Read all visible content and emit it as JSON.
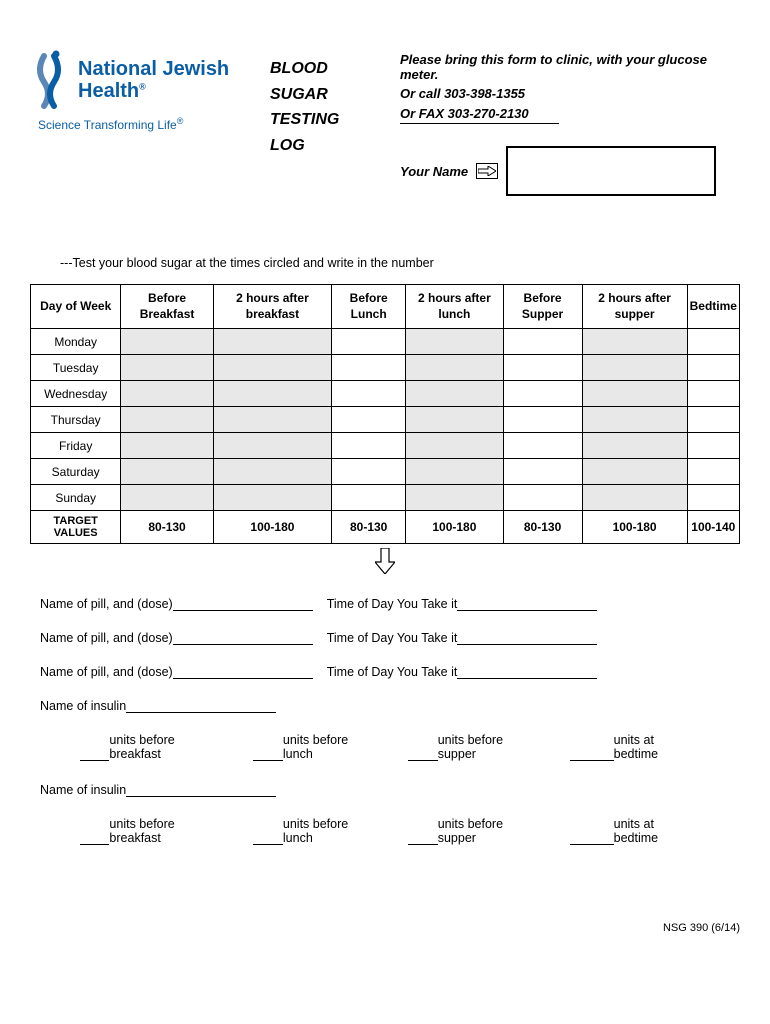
{
  "logo": {
    "org_name": "National Jewish",
    "org_sub": "Health",
    "tagline": "Science Transforming Life",
    "primary_color": "#0b5ea5",
    "accent_color": "#5a87b5"
  },
  "title": {
    "line1": "BLOOD",
    "line2": "SUGAR",
    "line3": "TESTING",
    "line4": "LOG"
  },
  "info": {
    "line1": "Please bring this form to clinic, with your glucose meter.",
    "line2": "Or call  303-398-1355",
    "line3": "Or FAX 303-270-2130",
    "name_label": "Your Name"
  },
  "instruction": "---Test your blood sugar at the times circled and write in the number",
  "table": {
    "headers": [
      "Day of Week",
      "Before Breakfast",
      "2 hours after breakfast",
      "Before Lunch",
      "2 hours after lunch",
      "Before Supper",
      "2 hours after supper",
      "Bedtime"
    ],
    "days": [
      "Monday",
      "Tuesday",
      "Wednesday",
      "Thursday",
      "Friday",
      "Saturday",
      "Sunday"
    ],
    "shaded_cols": [
      1,
      2,
      4,
      6
    ],
    "target_label": "TARGET VALUES",
    "target_values": [
      "80-130",
      "100-180",
      "80-130",
      "100-180",
      "80-130",
      "100-180",
      "100-140"
    ]
  },
  "meds": {
    "pill_label": "Name of pill, and (dose)",
    "time_label": "Time of Day You Take it",
    "insulin_label": "Name of insulin",
    "unit_labels": [
      "units before breakfast",
      "units before lunch",
      "units before supper",
      "units at bedtime"
    ]
  },
  "footer": "NSG 390 (6/14)",
  "colors": {
    "text": "#000000",
    "shade": "#e8e8e8",
    "border": "#000000",
    "background": "#ffffff"
  }
}
